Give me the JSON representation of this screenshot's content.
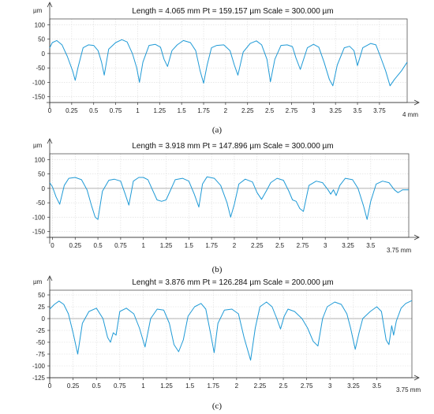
{
  "chart_data": [
    {
      "type": "line",
      "title": "Length = 4.065 mm Pt = 159.157 µm Scale = 300.000 µm",
      "ylabel": "µm",
      "x_unit": "4 mm",
      "caption": "(a)",
      "ylim": [
        -170,
        120
      ],
      "xlim": [
        0,
        4.065
      ],
      "yticks": [
        100,
        50,
        0,
        -50,
        -100,
        -150
      ],
      "xticks": [
        "0",
        "0.25",
        "0.5",
        "0.75",
        "1",
        "1.25",
        "1.5",
        "1.75",
        "2",
        "2.25",
        "2.5",
        "2.75",
        "3",
        "3.25",
        "3.5",
        "3.75"
      ],
      "grid": true,
      "line_color": "#1f9ad6",
      "series": [
        {
          "x": [
            0,
            0.03,
            0.08,
            0.14,
            0.2,
            0.26,
            0.29,
            0.32,
            0.38,
            0.44,
            0.5,
            0.55,
            0.59,
            0.62,
            0.67,
            0.75,
            0.82,
            0.88,
            0.94,
            0.99,
            1.02,
            1.06,
            1.13,
            1.2,
            1.26,
            1.3,
            1.34,
            1.39,
            1.45,
            1.52,
            1.6,
            1.66,
            1.71,
            1.75,
            1.79,
            1.84,
            1.9,
            1.98,
            2.05,
            2.1,
            2.14,
            2.2,
            2.28,
            2.35,
            2.41,
            2.47,
            2.51,
            2.56,
            2.63,
            2.7,
            2.76,
            2.8,
            2.85,
            2.93,
            3.0,
            3.06,
            3.12,
            3.18,
            3.22,
            3.27,
            3.35,
            3.41,
            3.46,
            3.5,
            3.56,
            3.65,
            3.71,
            3.76,
            3.82,
            3.87,
            3.92,
            4.0,
            4.065
          ],
          "y": [
            20,
            38,
            45,
            30,
            -10,
            -60,
            -93,
            -50,
            20,
            30,
            28,
            10,
            -30,
            -75,
            15,
            38,
            48,
            40,
            0,
            -50,
            -100,
            -30,
            28,
            32,
            22,
            -20,
            -45,
            10,
            30,
            45,
            38,
            10,
            -60,
            -103,
            -40,
            20,
            28,
            30,
            10,
            -40,
            -75,
            5,
            35,
            44,
            30,
            -20,
            -98,
            -20,
            28,
            30,
            24,
            -15,
            -55,
            20,
            32,
            22,
            -30,
            -90,
            -112,
            -40,
            20,
            25,
            10,
            -42,
            20,
            35,
            30,
            -10,
            -60,
            -112,
            -90,
            -60,
            -30
          ]
        }
      ]
    },
    {
      "type": "line",
      "title": "Length = 3.918 mm Pt = 147.896 µm Scale = 300.000 µm",
      "ylabel": "µm",
      "x_unit": "3.75 mm",
      "caption": "(b)",
      "ylim": [
        -170,
        120
      ],
      "xlim": [
        -0.03,
        3.918
      ],
      "yticks": [
        100,
        50,
        0,
        -50,
        -100,
        -150
      ],
      "xticks": [
        "0",
        "0.25",
        "0.5",
        "0.75",
        "1",
        "1.25",
        "1.5",
        "1.75",
        "2",
        "2.25",
        "2.5",
        "2.75",
        "3",
        "3.25",
        "3.5"
      ],
      "grid": true,
      "line_color": "#1f9ad6",
      "series": [
        {
          "x": [
            -0.03,
            0,
            0.04,
            0.08,
            0.13,
            0.18,
            0.25,
            0.32,
            0.38,
            0.43,
            0.47,
            0.5,
            0.55,
            0.62,
            0.68,
            0.75,
            0.8,
            0.84,
            0.89,
            0.95,
            1.0,
            1.05,
            1.1,
            1.15,
            1.2,
            1.25,
            1.3,
            1.35,
            1.43,
            1.5,
            1.56,
            1.61,
            1.65,
            1.7,
            1.78,
            1.85,
            1.92,
            1.96,
            2.0,
            2.05,
            2.12,
            2.2,
            2.25,
            2.3,
            2.35,
            2.4,
            2.47,
            2.54,
            2.6,
            2.64,
            2.68,
            2.72,
            2.76,
            2.82,
            2.9,
            2.97,
            3.03,
            3.06,
            3.09,
            3.12,
            3.16,
            3.22,
            3.3,
            3.36,
            3.42,
            3.46,
            3.5,
            3.56,
            3.63,
            3.7,
            3.76,
            3.8,
            3.85,
            3.918
          ],
          "y": [
            20,
            5,
            -30,
            -55,
            10,
            35,
            38,
            30,
            -5,
            -60,
            -100,
            -108,
            -10,
            28,
            32,
            25,
            -20,
            -58,
            25,
            38,
            38,
            30,
            -5,
            -40,
            -45,
            -40,
            -5,
            30,
            35,
            25,
            -20,
            -65,
            15,
            40,
            35,
            10,
            -50,
            -100,
            -55,
            15,
            32,
            22,
            -15,
            -38,
            -10,
            20,
            35,
            28,
            -10,
            -40,
            -45,
            -70,
            -80,
            10,
            25,
            20,
            -5,
            -20,
            -5,
            -25,
            10,
            35,
            30,
            0,
            -60,
            -108,
            -45,
            15,
            25,
            20,
            -5,
            -15,
            -5,
            -5
          ]
        }
      ]
    },
    {
      "type": "line",
      "title": "Lenght = 3.876 mm Pt = 126.284 µm Scale = 200.000 µm",
      "ylabel": "µm",
      "x_unit": "3.75 mm",
      "caption": "(c)",
      "ylim": [
        -125,
        60
      ],
      "xlim": [
        0,
        3.876
      ],
      "yticks": [
        50,
        25,
        0,
        -25,
        -50,
        -75,
        -100,
        -125
      ],
      "xticks": [
        "0",
        "0.25",
        "0.5",
        "0.75",
        "1",
        "1.25",
        "1.5",
        "1.75",
        "2",
        "2.25",
        "2.5",
        "2.75",
        "3",
        "3.25",
        "3.5"
      ],
      "grid": true,
      "line_color": "#1f9ad6",
      "series": [
        {
          "x": [
            0,
            0.05,
            0.1,
            0.15,
            0.2,
            0.25,
            0.3,
            0.35,
            0.42,
            0.5,
            0.57,
            0.62,
            0.65,
            0.68,
            0.71,
            0.75,
            0.82,
            0.9,
            0.96,
            1.02,
            1.08,
            1.15,
            1.22,
            1.28,
            1.33,
            1.38,
            1.43,
            1.48,
            1.55,
            1.62,
            1.67,
            1.72,
            1.76,
            1.8,
            1.87,
            1.95,
            2.02,
            2.08,
            2.15,
            2.2,
            2.25,
            2.32,
            2.38,
            2.43,
            2.47,
            2.51,
            2.55,
            2.62,
            2.7,
            2.76,
            2.82,
            2.87,
            2.92,
            2.97,
            3.05,
            3.12,
            3.18,
            3.22,
            3.27,
            3.31,
            3.35,
            3.43,
            3.5,
            3.55,
            3.6,
            3.63,
            3.66,
            3.68,
            3.71,
            3.76,
            3.81,
            3.876
          ],
          "y": [
            20,
            30,
            37,
            30,
            10,
            -30,
            -75,
            -10,
            15,
            22,
            0,
            -40,
            -50,
            -30,
            -35,
            15,
            22,
            10,
            -20,
            -60,
            0,
            20,
            18,
            -10,
            -55,
            -70,
            -45,
            5,
            25,
            32,
            20,
            -30,
            -72,
            -10,
            18,
            20,
            10,
            -40,
            -88,
            -20,
            25,
            35,
            25,
            0,
            -22,
            5,
            20,
            15,
            0,
            -20,
            -48,
            -58,
            0,
            25,
            35,
            30,
            10,
            -20,
            -65,
            -30,
            0,
            15,
            25,
            15,
            -45,
            -55,
            -15,
            -35,
            -5,
            22,
            32,
            38
          ]
        }
      ]
    }
  ]
}
